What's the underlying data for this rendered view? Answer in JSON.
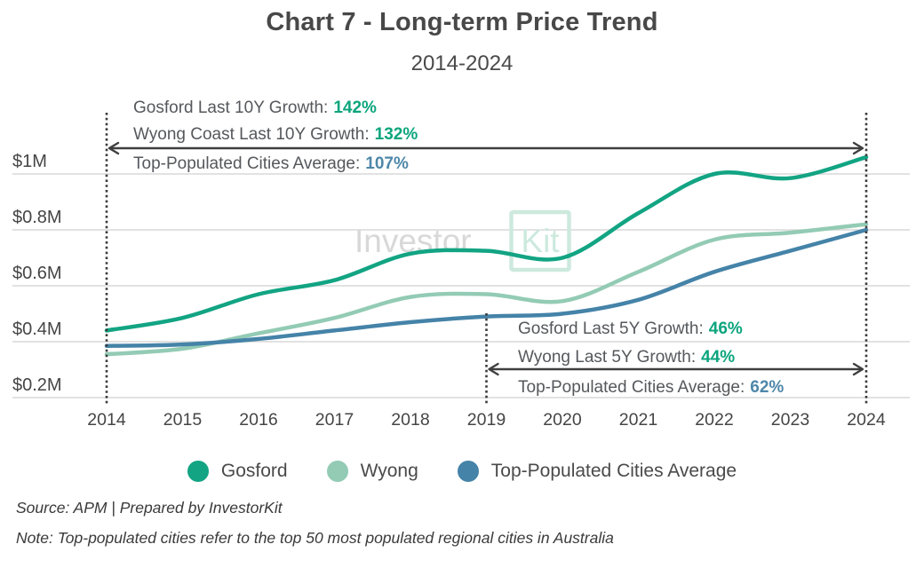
{
  "title": "Chart 7 - Long-term Price Trend",
  "subtitle": "2014-2024",
  "watermark": {
    "text": "Investor",
    "boxed_text": "Kit",
    "gray": "#d8d8d8",
    "teal": "#cde9de"
  },
  "chart_data": {
    "type": "line",
    "x": [
      2014,
      2015,
      2016,
      2017,
      2018,
      2019,
      2020,
      2021,
      2022,
      2023,
      2024
    ],
    "x_tick_labels": [
      "2014",
      "2015",
      "2016",
      "2017",
      "2018",
      "2019",
      "2020",
      "2021",
      "2022",
      "2023",
      "2024"
    ],
    "y_tick_labels": [
      "$1M",
      "$0.8M",
      "$0.6M",
      "$0.4M",
      "$0.2M"
    ],
    "y_tick_values": [
      1.0,
      0.8,
      0.6,
      0.4,
      0.2
    ],
    "y_unit": "$M",
    "ylim": [
      0.2,
      1.1
    ],
    "grid": "horizontal",
    "legend_position": "bottom",
    "series": [
      {
        "name": "Gosford",
        "color": "#12a483",
        "values": [
          0.44,
          0.485,
          0.57,
          0.62,
          0.715,
          0.725,
          0.7,
          0.86,
          1.0,
          0.985,
          1.06
        ]
      },
      {
        "name": "Wyong",
        "color": "#93cbb4",
        "values": [
          0.355,
          0.375,
          0.43,
          0.485,
          0.56,
          0.57,
          0.545,
          0.65,
          0.765,
          0.79,
          0.82
        ]
      },
      {
        "name": "Top-Populated Cities Average",
        "color": "#4583a8",
        "values": [
          0.385,
          0.39,
          0.41,
          0.44,
          0.47,
          0.49,
          0.5,
          0.55,
          0.65,
          0.725,
          0.8
        ]
      }
    ],
    "annotations": {
      "ten_year_span": [
        2014,
        2024
      ],
      "ten_year": [
        {
          "label": "Gosford Last 10Y Growth:",
          "value": "142%",
          "value_color": "#0ba57d"
        },
        {
          "label": "Wyong Coast Last 10Y Growth:",
          "value": "132%",
          "value_color": "#0ba57d"
        },
        {
          "label": "Top-Populated Cities Average:",
          "value": "107%",
          "value_color": "#4e87a9"
        }
      ],
      "five_year_span": [
        2019,
        2024
      ],
      "five_year": [
        {
          "label": "Gosford Last 5Y Growth:",
          "value": "46%",
          "value_color": "#0ba57d"
        },
        {
          "label": "Wyong Last 5Y Growth:",
          "value": "44%",
          "value_color": "#0ba57d"
        },
        {
          "label": "Top-Populated Cities Average:",
          "value": "62%",
          "value_color": "#4e87a9"
        }
      ]
    }
  },
  "footer": {
    "source": "Source: APM | Prepared by InvestorKit",
    "note": "Note: Top-populated cities refer to the top 50 most populated regional cities in Australia"
  }
}
